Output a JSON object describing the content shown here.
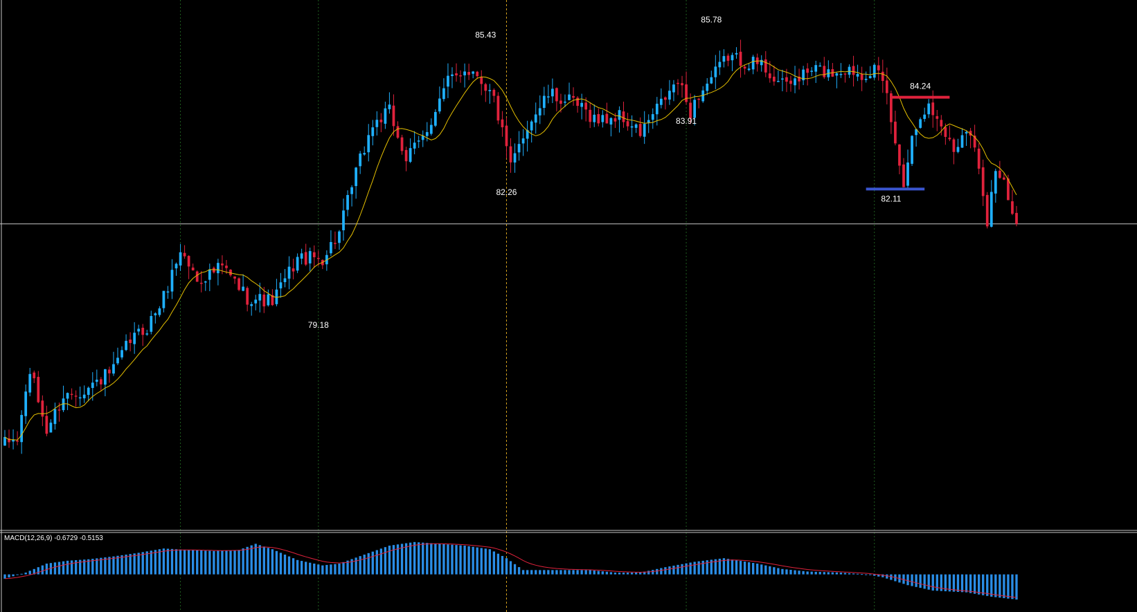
{
  "colors": {
    "background": "#000000",
    "bull_candle": "#1fb0ff",
    "bear_candle": "#e0223c",
    "ma_line": "#e6c000",
    "grid": "#1f5f1f",
    "event_line": "#d9a520",
    "crosshair": "#c8c8c8",
    "annotation_text": "#ffffff",
    "resistance_line": "#e0223c",
    "support_line": "#3a55d0",
    "macd_hist": "#2a8de6",
    "macd_signal": "#e0223c",
    "frame": "#c8c8c8"
  },
  "chart_data": [
    {
      "type": "candlestick",
      "panel": "price",
      "ylim": [
        74.3,
        86.4
      ],
      "grid": true,
      "moving_average": true,
      "anchors": [
        [
          0,
          76.2
        ],
        [
          3,
          76.3
        ],
        [
          6,
          77.9
        ],
        [
          10,
          76.5
        ],
        [
          14,
          77.3
        ],
        [
          20,
          77.5
        ],
        [
          26,
          77.9
        ],
        [
          30,
          78.6
        ],
        [
          34,
          78.9
        ],
        [
          38,
          79.6
        ],
        [
          42,
          80.7
        ],
        [
          46,
          80.0
        ],
        [
          52,
          80.3
        ],
        [
          58,
          79.6
        ],
        [
          64,
          79.5
        ],
        [
          70,
          80.5
        ],
        [
          76,
          80.5
        ],
        [
          80,
          81.1
        ],
        [
          84,
          82.5
        ],
        [
          88,
          83.6
        ],
        [
          92,
          83.9
        ],
        [
          96,
          82.8
        ],
        [
          100,
          83.3
        ],
        [
          106,
          84.6
        ],
        [
          110,
          84.9
        ],
        [
          113,
          84.8
        ],
        [
          117,
          84.2
        ],
        [
          121,
          82.6
        ],
        [
          125,
          83.6
        ],
        [
          130,
          84.3
        ],
        [
          136,
          84.1
        ],
        [
          142,
          83.7
        ],
        [
          147,
          83.8
        ],
        [
          152,
          83.4
        ],
        [
          157,
          84.1
        ],
        [
          161,
          84.6
        ],
        [
          164,
          83.9
        ],
        [
          166,
          84.3
        ],
        [
          170,
          84.8
        ],
        [
          173,
          85.2
        ],
        [
          176,
          85.1
        ],
        [
          181,
          85.0
        ],
        [
          186,
          84.5
        ],
        [
          190,
          84.7
        ],
        [
          194,
          84.9
        ],
        [
          197,
          84.8
        ],
        [
          201,
          84.9
        ],
        [
          205,
          84.8
        ],
        [
          208,
          84.9
        ],
        [
          211,
          84.3
        ],
        [
          213,
          83.1
        ],
        [
          215,
          82.3
        ],
        [
          217,
          83.3
        ],
        [
          219,
          83.9
        ],
        [
          221,
          84.0
        ],
        [
          224,
          83.6
        ],
        [
          227,
          83.0
        ],
        [
          230,
          83.6
        ],
        [
          233,
          82.7
        ],
        [
          235,
          81.4
        ],
        [
          237,
          82.6
        ],
        [
          239,
          82.2
        ],
        [
          241,
          81.5
        ],
        [
          242,
          81.3
        ]
      ],
      "annotations": [
        {
          "text": "85.43",
          "bar": 115,
          "price": 85.43,
          "pos": "above"
        },
        {
          "text": "82.26",
          "bar": 120,
          "price": 82.26,
          "pos": "below"
        },
        {
          "text": "79.18",
          "bar": 75,
          "price": 79.18,
          "pos": "below"
        },
        {
          "text": "85.78",
          "bar": 169,
          "price": 85.78,
          "pos": "above"
        },
        {
          "text": "83.91",
          "bar": 163,
          "price": 83.91,
          "pos": "below"
        },
        {
          "text": "84.24",
          "bar": 219,
          "price": 84.24,
          "pos": "above"
        },
        {
          "text": "82.11",
          "bar": 212,
          "price": 82.11,
          "pos": "below"
        }
      ],
      "levels": [
        {
          "name": "resistance",
          "price": 84.24,
          "from_bar": 212,
          "to_bar": 226
        },
        {
          "name": "support",
          "price": 82.11,
          "from_bar": 206,
          "to_bar": 220
        }
      ],
      "current_price": 81.3,
      "event_bar": 120,
      "grid_bars": [
        42,
        75,
        163,
        208
      ]
    },
    {
      "type": "bar",
      "panel": "macd",
      "title": "MACD(12,26,9) -0.6729 -0.5153",
      "indicator": "MACD(12,26,9)",
      "main_value": -0.6729,
      "signal_value": -0.5153,
      "ylim": [
        -0.95,
        1.05
      ],
      "anchors": [
        [
          0,
          -0.12
        ],
        [
          5,
          0.05
        ],
        [
          10,
          0.3
        ],
        [
          15,
          0.38
        ],
        [
          20,
          0.42
        ],
        [
          26,
          0.5
        ],
        [
          32,
          0.6
        ],
        [
          38,
          0.72
        ],
        [
          44,
          0.68
        ],
        [
          50,
          0.65
        ],
        [
          56,
          0.68
        ],
        [
          60,
          0.85
        ],
        [
          64,
          0.7
        ],
        [
          70,
          0.4
        ],
        [
          76,
          0.25
        ],
        [
          80,
          0.3
        ],
        [
          86,
          0.55
        ],
        [
          92,
          0.8
        ],
        [
          98,
          0.9
        ],
        [
          104,
          0.85
        ],
        [
          110,
          0.8
        ],
        [
          116,
          0.7
        ],
        [
          120,
          0.45
        ],
        [
          124,
          0.12
        ],
        [
          130,
          0.12
        ],
        [
          140,
          0.12
        ],
        [
          146,
          0.05
        ],
        [
          152,
          0.05
        ],
        [
          158,
          0.2
        ],
        [
          165,
          0.35
        ],
        [
          172,
          0.45
        ],
        [
          180,
          0.3
        ],
        [
          186,
          0.15
        ],
        [
          192,
          0.08
        ],
        [
          200,
          0.05
        ],
        [
          206,
          0.0
        ],
        [
          210,
          -0.08
        ],
        [
          216,
          -0.3
        ],
        [
          222,
          -0.45
        ],
        [
          230,
          -0.5
        ],
        [
          236,
          -0.62
        ],
        [
          242,
          -0.7
        ]
      ]
    }
  ]
}
